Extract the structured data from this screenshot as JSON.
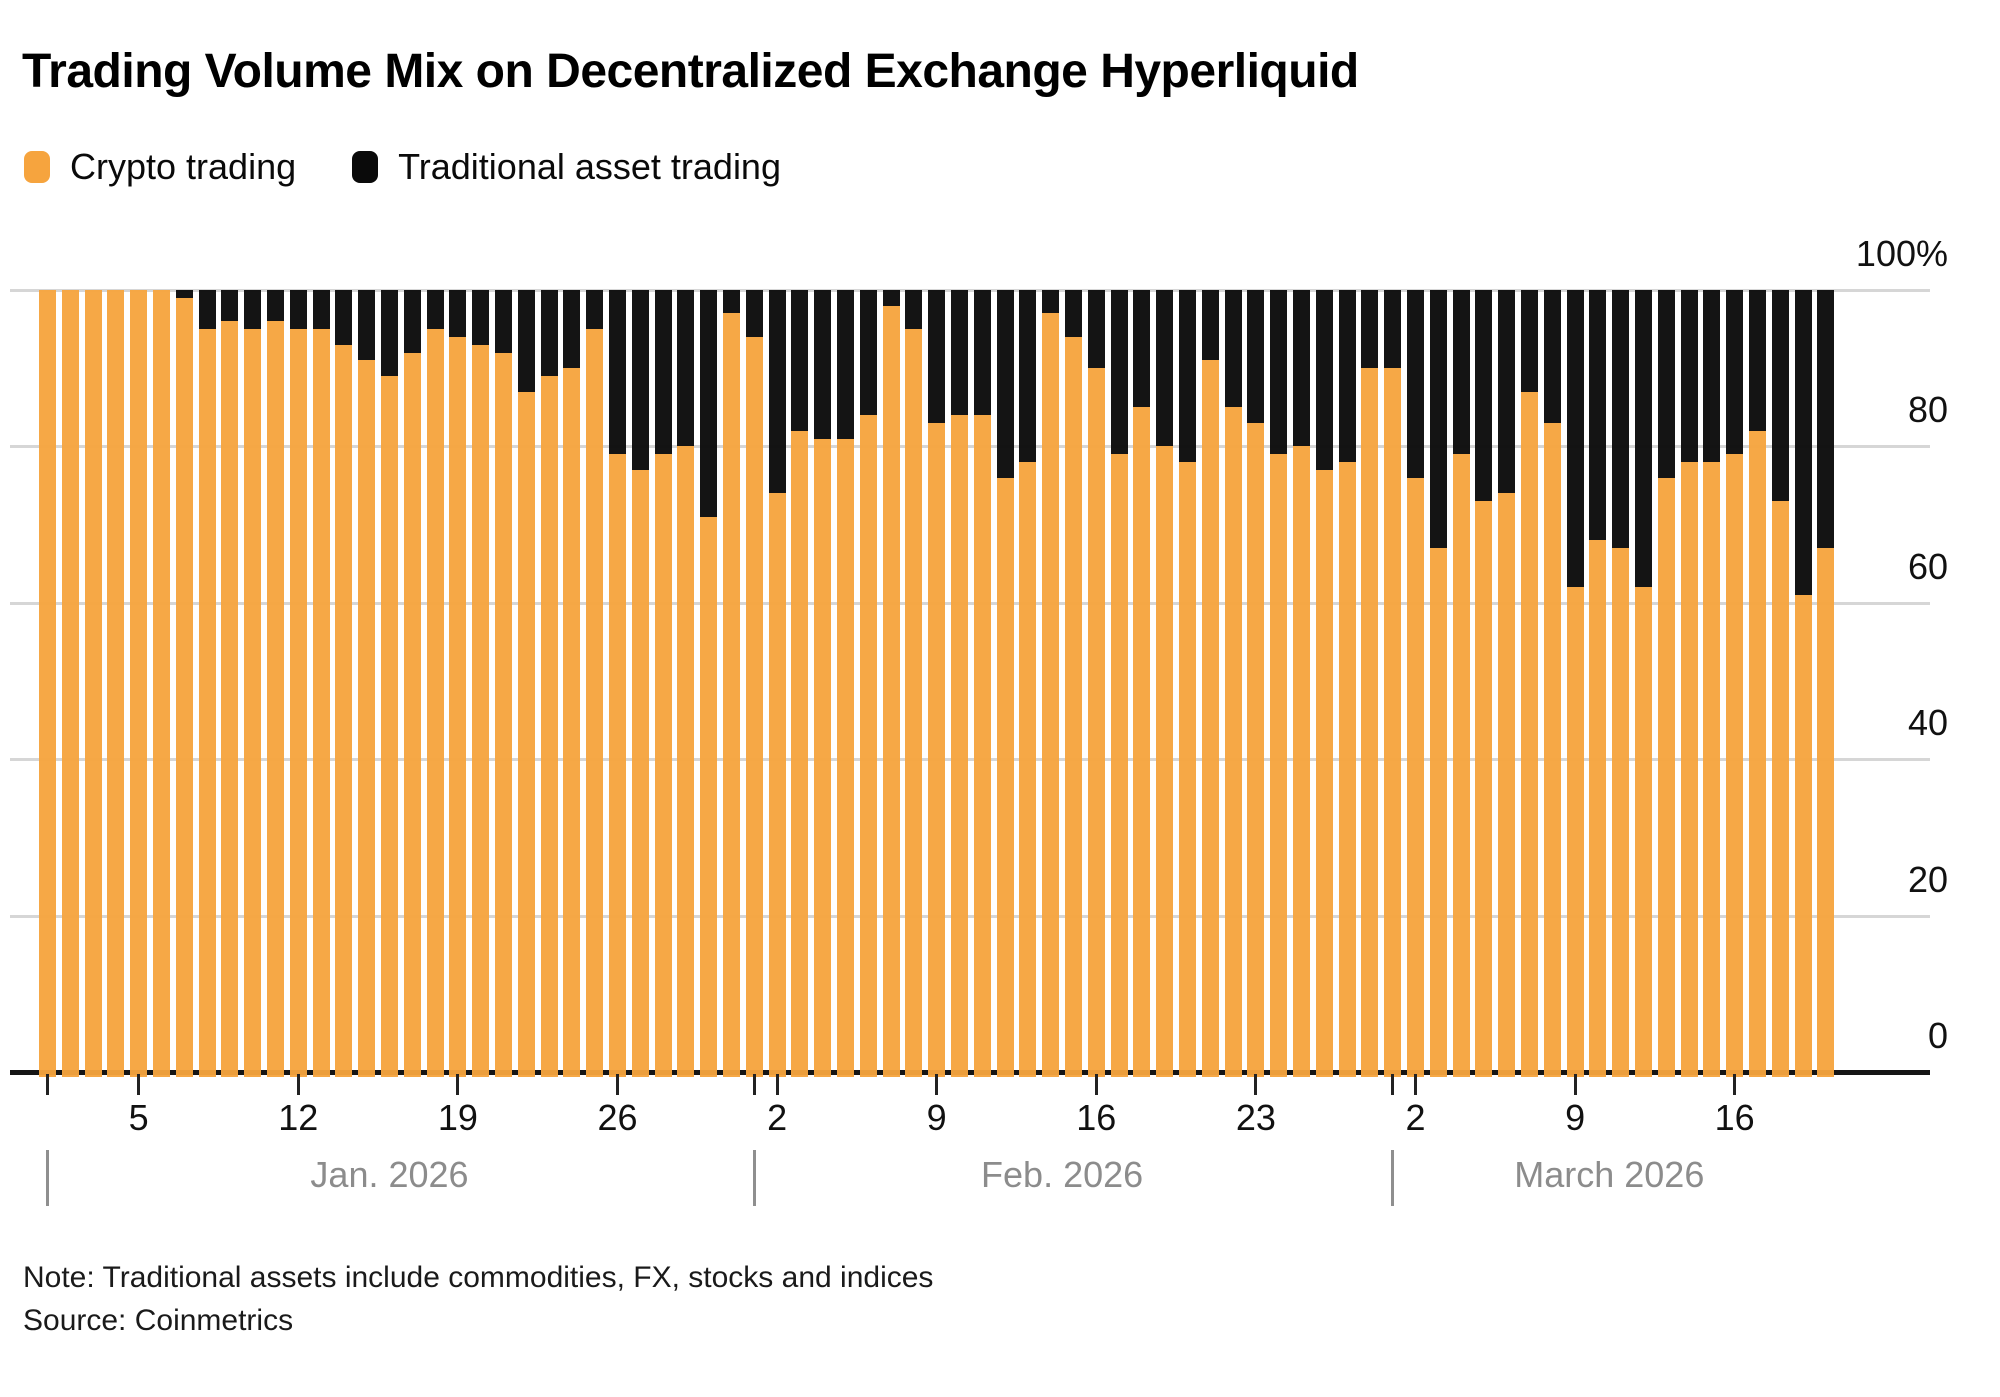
{
  "title": "Trading Volume Mix on Decentralized Exchange Hyperliquid",
  "legend": [
    {
      "label": "Crypto trading",
      "color": "#F6A43E"
    },
    {
      "label": "Traditional asset trading",
      "color": "#0A0A0A"
    }
  ],
  "note": "Note: Traditional assets include commodities, FX, stocks and indices",
  "source": "Source: Coinmetrics",
  "chart_data": {
    "type": "bar",
    "stacked": true,
    "unit": "%",
    "title": "Trading Volume Mix on Decentralized Exchange Hyperliquid",
    "ylim": [
      0,
      100
    ],
    "yticks": [
      0,
      20,
      40,
      60,
      80,
      100
    ],
    "ytick_labels": [
      "0",
      "20",
      "40",
      "60",
      "80",
      "100%"
    ],
    "grid": true,
    "legend_position": "top-left",
    "x_start_date": "2026-01-01",
    "x_end_date": "2026-03-20",
    "x_frequency": "daily",
    "months": [
      {
        "label": "Jan. 2026",
        "days": 31,
        "labeled_day_ticks": [
          5,
          12,
          19,
          26
        ]
      },
      {
        "label": "Feb. 2026",
        "days": 28,
        "labeled_day_ticks": [
          2,
          9,
          16,
          23
        ]
      },
      {
        "label": "March 2026",
        "days": 20,
        "labeled_day_ticks": [
          2,
          9,
          16
        ]
      }
    ],
    "series": [
      {
        "name": "Crypto trading",
        "color": "#F6A43E",
        "values": [
          100,
          100,
          100,
          100,
          100,
          100,
          99,
          95,
          96,
          95,
          96,
          95,
          95,
          93,
          91,
          89,
          92,
          95,
          94,
          93,
          92,
          87,
          89,
          90,
          95,
          79,
          77,
          79,
          80,
          71,
          97,
          94,
          74,
          82,
          81,
          81,
          84,
          98,
          95,
          83,
          84,
          84,
          76,
          78,
          97,
          94,
          90,
          79,
          85,
          80,
          78,
          91,
          85,
          83,
          79,
          80,
          77,
          78,
          90,
          90,
          76,
          67,
          79,
          73,
          74,
          87,
          83,
          62,
          68,
          67,
          62,
          76,
          78,
          78,
          79,
          82,
          73,
          61,
          67
        ]
      },
      {
        "name": "Traditional asset trading",
        "color": "#0A0A0A",
        "values": [
          0,
          0,
          0,
          0,
          0,
          0,
          1,
          5,
          4,
          5,
          4,
          5,
          5,
          7,
          9,
          11,
          8,
          5,
          6,
          7,
          8,
          13,
          11,
          10,
          5,
          21,
          23,
          21,
          20,
          29,
          3,
          6,
          26,
          18,
          19,
          19,
          16,
          2,
          5,
          17,
          16,
          16,
          24,
          22,
          3,
          6,
          10,
          21,
          15,
          20,
          22,
          9,
          15,
          17,
          21,
          20,
          23,
          22,
          10,
          10,
          24,
          33,
          21,
          27,
          26,
          13,
          17,
          38,
          32,
          33,
          38,
          24,
          22,
          22,
          21,
          18,
          27,
          39,
          33
        ]
      }
    ]
  }
}
